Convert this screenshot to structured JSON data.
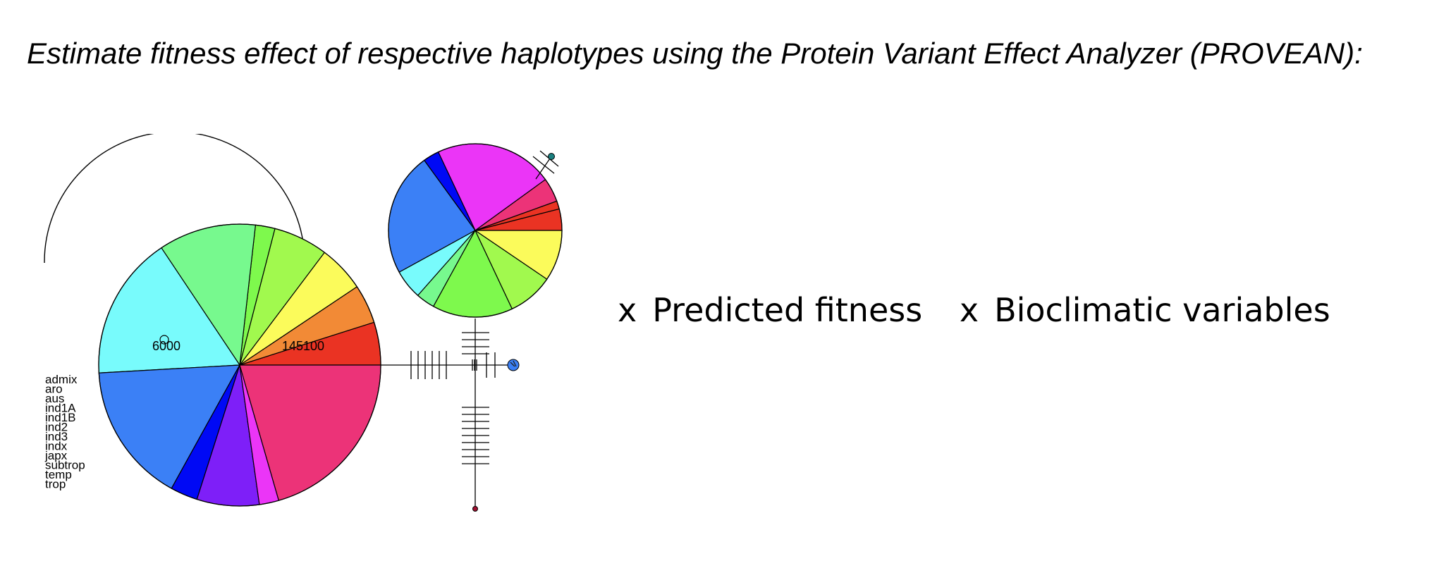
{
  "title": "Estimate fitness effect of respective haplotypes using the Protein Variant Effect Analyzer (PROVEAN):",
  "node_labels": [
    "6000",
    "145100"
  ],
  "legend": [
    "admix",
    "aro",
    "aus",
    "ind1A",
    "ind1B",
    "ind2",
    "ind3",
    "indx",
    "japx",
    "subtrop",
    "temp",
    "trop"
  ],
  "pie_large": {
    "slices": [
      {
        "pct": 5.5,
        "color": "#ea3323"
      },
      {
        "pct": 5.0,
        "color": "#f28a36"
      },
      {
        "pct": 6.0,
        "color": "#fbfb5b"
      },
      {
        "pct": 7.0,
        "color": "#a1f94e"
      },
      {
        "pct": 2.5,
        "color": "#7ef94d"
      },
      {
        "pct": 12.5,
        "color": "#77f98e"
      },
      {
        "pct": 18.5,
        "color": "#78fbfc"
      },
      {
        "pct": 18.0,
        "color": "#3b80f6"
      },
      {
        "pct": 3.5,
        "color": "#0009f5"
      },
      {
        "pct": 8.0,
        "color": "#7e1ff8"
      },
      {
        "pct": 2.5,
        "color": "#eb35f7"
      },
      {
        "pct": 23.0,
        "color": "#ec3378"
      }
    ]
  },
  "pie_small": {
    "slices": [
      {
        "pct": 4.0,
        "color": "#ea3323"
      },
      {
        "pct": 1.5,
        "color": "#ea3323"
      },
      {
        "pct": 4.5,
        "color": "#ec3378"
      },
      {
        "pct": 22.0,
        "color": "#eb35f7"
      },
      {
        "pct": 3.0,
        "color": "#0009f5"
      },
      {
        "pct": 23.0,
        "color": "#3b80f6"
      },
      {
        "pct": 5.5,
        "color": "#78fbfc"
      },
      {
        "pct": 3.5,
        "color": "#77f98e"
      },
      {
        "pct": 15.0,
        "color": "#7ef94d"
      },
      {
        "pct": 8.5,
        "color": "#a1f94e"
      },
      {
        "pct": 9.5,
        "color": "#fbfb5b"
      }
    ]
  },
  "factors": [
    {
      "symbol": "x",
      "label": "Predicted fitness"
    },
    {
      "symbol": "x",
      "label": "Bioclimatic variables"
    }
  ]
}
